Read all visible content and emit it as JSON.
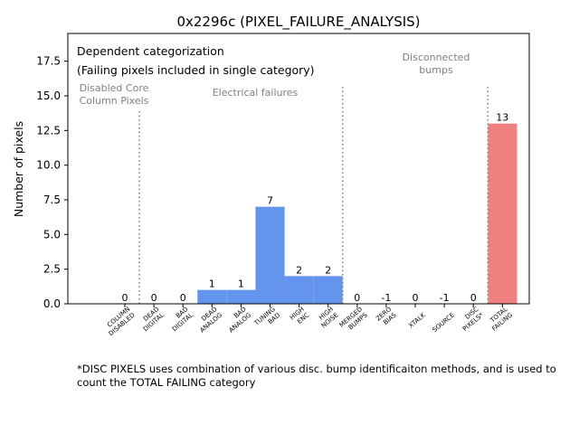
{
  "chart_data": {
    "type": "bar",
    "title": "0x2296c (PIXEL_FAILURE_ANALYSIS)",
    "xlabel": "",
    "ylabel": "Number of pixels",
    "ylim": [
      0,
      19.5
    ],
    "yticks": [
      0.0,
      2.5,
      5.0,
      7.5,
      10.0,
      12.5,
      15.0,
      17.5
    ],
    "ytick_labels": [
      "0.0",
      "2.5",
      "5.0",
      "7.5",
      "10.0",
      "12.5",
      "15.0",
      "17.5"
    ],
    "grid": false,
    "categories": [
      "COLUMN DISABLED",
      "DEAD DIGITAL",
      "BAD DIGITAL",
      "DEAD ANALOG",
      "BAD ANALOG",
      "TUNING BAD",
      "HIGH ENC",
      "HIGH NOISE",
      "MERGED BUMPS",
      "ZERO BIAS",
      "XTALK",
      "SOURCE",
      "DISC PIXELS*",
      "TOTAL FAILING"
    ],
    "tick_labels": [
      [
        "COLUMN",
        "DISABLED"
      ],
      [
        "DEAD",
        "DIGITAL"
      ],
      [
        "BAD",
        "DIGITAL"
      ],
      [
        "DEAD",
        "ANALOG"
      ],
      [
        "BAD",
        "ANALOG"
      ],
      [
        "TUNING",
        "BAD"
      ],
      [
        "HIGH",
        "ENC"
      ],
      [
        "HIGH",
        "NOISE"
      ],
      [
        "MERGED",
        "BUMPS"
      ],
      [
        "ZERO",
        "BIAS"
      ],
      [
        "XTALK"
      ],
      [
        "SOURCE"
      ],
      [
        "DISC",
        "PIXELS*"
      ],
      [
        "TOTAL",
        "FAILING"
      ]
    ],
    "values": [
      0,
      0,
      0,
      1,
      1,
      7,
      2,
      2,
      0,
      -1,
      0,
      -1,
      0,
      13
    ],
    "value_labels": [
      "0",
      "0",
      "0",
      "1",
      "1",
      "7",
      "2",
      "2",
      "0",
      "-1",
      "0",
      "-1",
      "0",
      "13"
    ],
    "colors": {
      "electrical": "#6495ed",
      "total": "#f08080",
      "divider": "#808080",
      "annotation": "#808080"
    },
    "legend_box": {
      "line1": "Dependent categorization",
      "line2": "(Failing pixels included in single category)"
    },
    "annotations": {
      "disabled_core": [
        "Disabled Core",
        "Column Pixels"
      ],
      "electrical": "Electrical failures",
      "disconnected": [
        "Disconnected",
        "bumps"
      ]
    },
    "footnote": "*DISC PIXELS uses combination of various disc. bump identificaiton methods, and is used to count the TOTAL FAILING category"
  }
}
